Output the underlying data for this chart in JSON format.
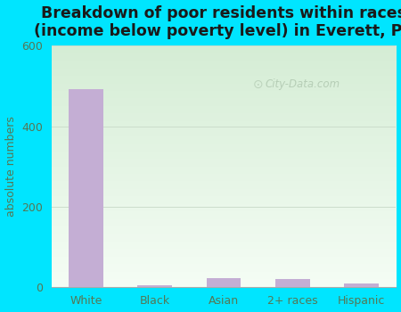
{
  "categories": [
    "White",
    "Black",
    "Asian",
    "2+ races",
    "Hispanic"
  ],
  "values": [
    492,
    4,
    22,
    20,
    8
  ],
  "bar_color": "#c4aed4",
  "title": "Breakdown of poor residents within races\n(income below poverty level) in Everett, PA",
  "ylabel": "absolute numbers",
  "ylim": [
    0,
    600
  ],
  "yticks": [
    0,
    200,
    400,
    600
  ],
  "title_fontsize": 12.5,
  "label_fontsize": 9,
  "tick_fontsize": 9,
  "bg_outer": "#00e5ff",
  "bg_plot_color1": "#e0f0e0",
  "bg_plot_color2": "#f8fff8",
  "grid_color": "#ccddcc",
  "tick_color": "#557755",
  "label_color": "#557755",
  "watermark": "City-Data.com"
}
